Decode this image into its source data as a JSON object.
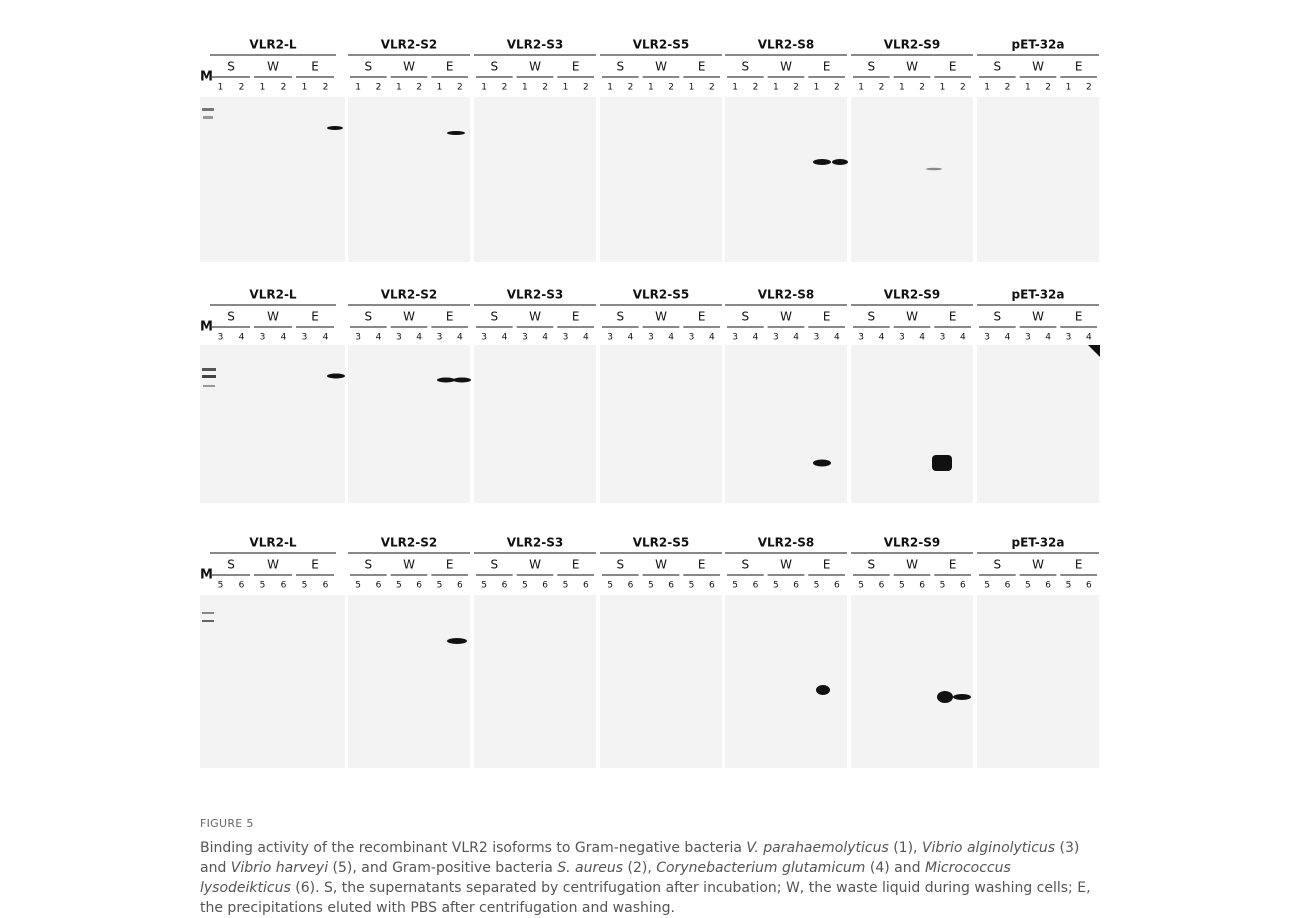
{
  "marker": "M",
  "rows": [
    {
      "groups": [
        "VLR2-L",
        "VLR2-S2",
        "VLR2-S3",
        "VLR2-S5",
        "VLR2-S8",
        "VLR2-S9",
        "pET-32a"
      ],
      "fractions": [
        "S",
        "W",
        "E"
      ],
      "lanes": [
        "1",
        "2"
      ]
    },
    {
      "groups": [
        "VLR2-L",
        "VLR2-S2",
        "VLR2-S3",
        "VLR2-S5",
        "VLR2-S8",
        "VLR2-S9",
        "pET-32a"
      ],
      "fractions": [
        "S",
        "W",
        "E"
      ],
      "lanes": [
        "3",
        "4"
      ]
    },
    {
      "groups": [
        "VLR2-L",
        "VLR2-S2",
        "VLR2-S3",
        "VLR2-S5",
        "VLR2-S8",
        "VLR2-S9",
        "pET-32a"
      ],
      "fractions": [
        "S",
        "W",
        "E"
      ],
      "lanes": [
        "5",
        "6"
      ]
    }
  ],
  "figure_label": "FIGURE 5",
  "caption": [
    {
      "text": "Binding activity of the recombinant VLR2 isoforms to Gram-negative bacteria ",
      "italic": false
    },
    {
      "text": "V. parahaemolyticus",
      "italic": true
    },
    {
      "text": " (1), ",
      "italic": false
    },
    {
      "text": "Vibrio alginolyticus",
      "italic": true
    },
    {
      "text": " (3) and ",
      "italic": false
    },
    {
      "text": "Vibrio harveyi",
      "italic": true
    },
    {
      "text": " (5), and Gram-positive bacteria ",
      "italic": false
    },
    {
      "text": "S. aureus",
      "italic": true
    },
    {
      "text": " (2), ",
      "italic": false
    },
    {
      "text": "Corynebacterium glutamicum",
      "italic": true
    },
    {
      "text": " (4) and ",
      "italic": false
    },
    {
      "text": "Micrococcus lysodeikticus",
      "italic": true
    },
    {
      "text": " (6). S, the supernatants separated by centrifugation after incubation; W, the waste liquid during washing cells; E, the precipitations eluted with PBS after centrifugation and washing.",
      "italic": false
    }
  ]
}
